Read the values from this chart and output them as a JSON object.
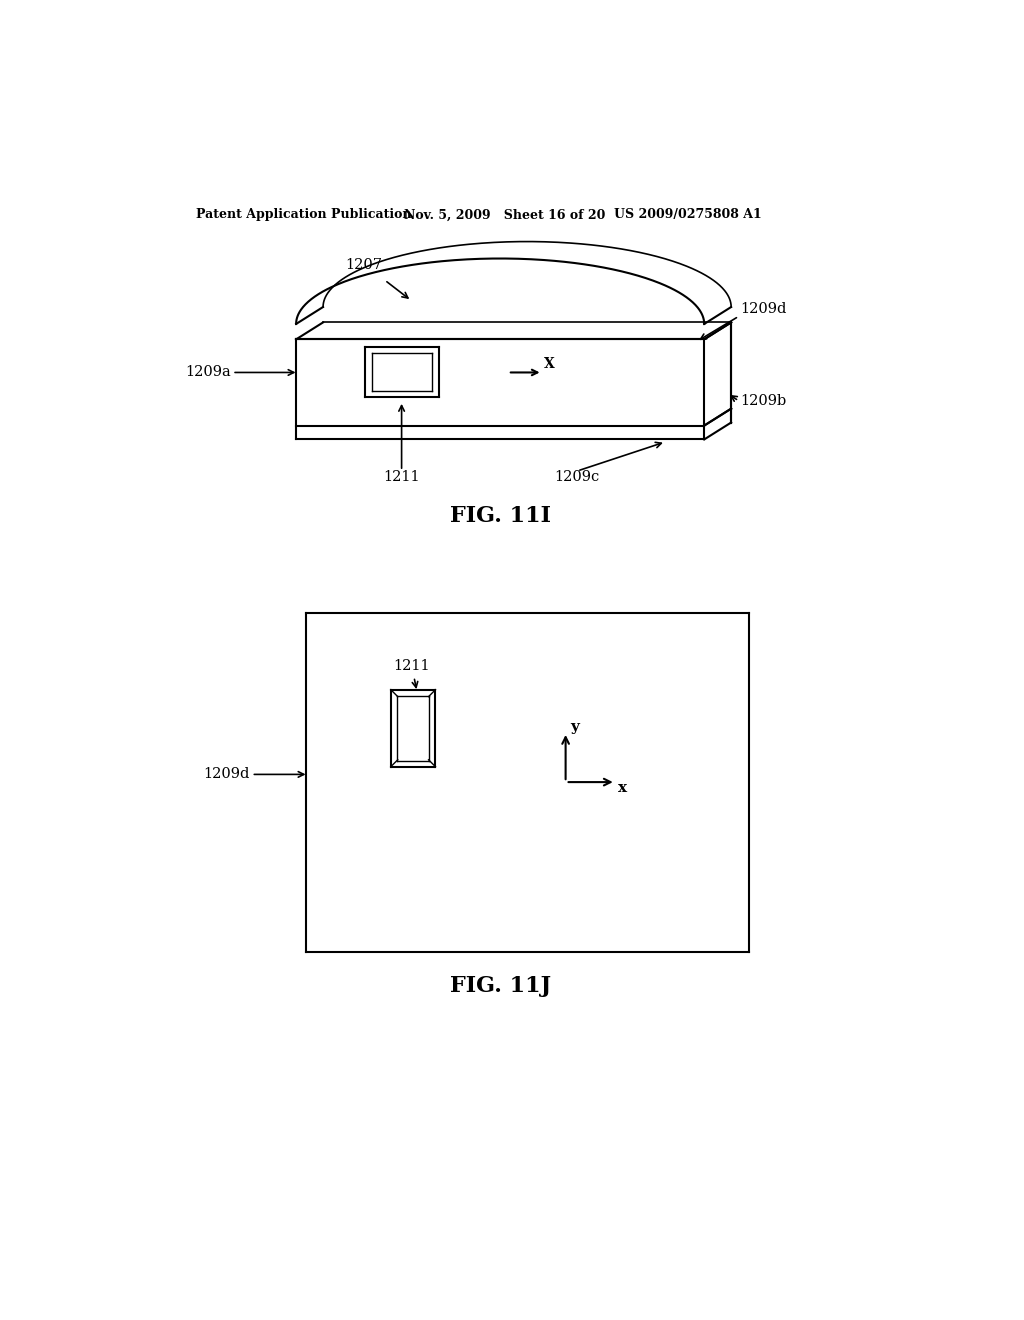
{
  "bg_color": "#ffffff",
  "header_left": "Patent Application Publication",
  "header_mid": "Nov. 5, 2009   Sheet 16 of 20",
  "header_right": "US 2009/0275808 A1",
  "fig1_label": "FIG. 11I",
  "fig2_label": "FIG. 11J",
  "line_color": "#000000",
  "text_color": "#000000"
}
